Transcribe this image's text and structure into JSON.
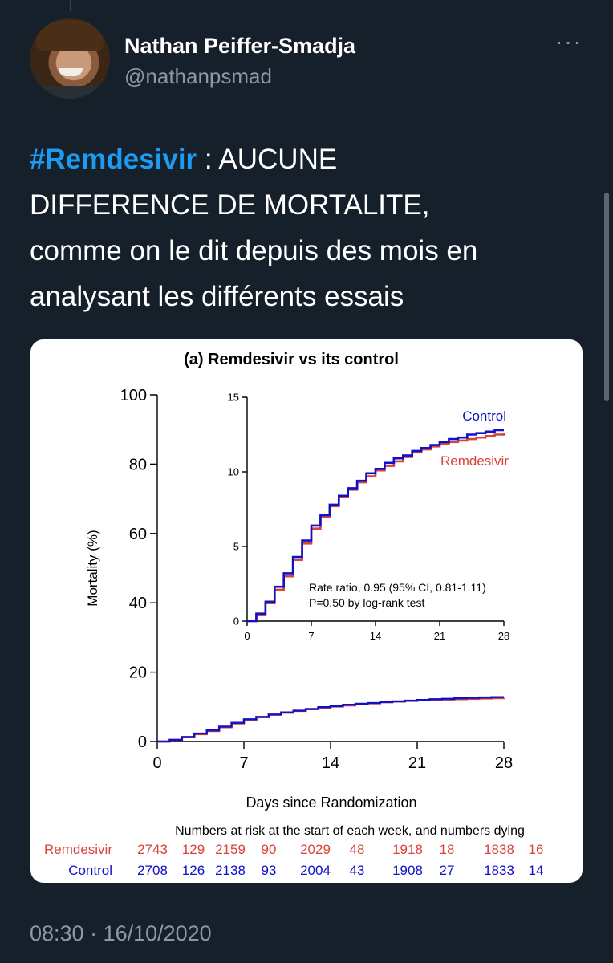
{
  "tweet": {
    "author_name": "Nathan Peiffer-Smadja",
    "author_handle": "@nathanpsmad",
    "hashtag": "#Remdesivir",
    "text_line1_rest": " : AUCUNE",
    "text_line2": "DIFFERENCE DE MORTALITE,",
    "text_line3": "comme on le dit depuis des mois en",
    "text_line4": "analysant les différents essais",
    "timestamp": "08:30 · 16/10/2020",
    "more_icon": "more-horizontal-icon",
    "hashtag_color": "#1d9bf0"
  },
  "chart_data": [
    {
      "type": "line",
      "title": "(a) Remdesivir vs its control",
      "xlabel": "Days since Randomization",
      "ylabel": "Mortality (%)",
      "xlim": [
        0,
        28
      ],
      "ylim": [
        0,
        100
      ],
      "x_ticks": [
        "0",
        "7",
        "14",
        "21",
        "28"
      ],
      "y_ticks": [
        "0",
        "20",
        "40",
        "60",
        "80",
        "100"
      ],
      "x": [
        0,
        1,
        2,
        3,
        4,
        5,
        6,
        7,
        8,
        9,
        10,
        11,
        12,
        13,
        14,
        15,
        16,
        17,
        18,
        19,
        20,
        21,
        22,
        23,
        24,
        25,
        26,
        27,
        28
      ],
      "series": [
        {
          "name": "Control",
          "color": "#1010c8",
          "values": [
            0,
            0.5,
            1.3,
            2.3,
            3.2,
            4.3,
            5.4,
            6.4,
            7.1,
            7.8,
            8.4,
            8.9,
            9.4,
            9.9,
            10.2,
            10.6,
            10.9,
            11.1,
            11.4,
            11.6,
            11.8,
            12.0,
            12.2,
            12.3,
            12.5,
            12.6,
            12.7,
            12.8,
            12.8
          ]
        },
        {
          "name": "Remdesivir",
          "color": "#d9443a",
          "values": [
            0,
            0.4,
            1.2,
            2.1,
            3.0,
            4.1,
            5.2,
            6.2,
            7.0,
            7.7,
            8.3,
            8.8,
            9.3,
            9.7,
            10.1,
            10.4,
            10.7,
            11.0,
            11.3,
            11.5,
            11.7,
            11.9,
            12.0,
            12.1,
            12.2,
            12.3,
            12.4,
            12.5,
            12.6
          ]
        }
      ]
    },
    {
      "type": "line",
      "title": "",
      "xlim": [
        0,
        28
      ],
      "ylim": [
        0,
        15
      ],
      "x_ticks": [
        "0",
        "7",
        "14",
        "21",
        "28"
      ],
      "y_ticks": [
        "0",
        "5",
        "10",
        "15"
      ],
      "annotation_line1": "Rate ratio, 0.95 (95% CI, 0.81-1.11)",
      "annotation_line2": "P=0.50 by log-rank test",
      "x": [
        0,
        1,
        2,
        3,
        4,
        5,
        6,
        7,
        8,
        9,
        10,
        11,
        12,
        13,
        14,
        15,
        16,
        17,
        18,
        19,
        20,
        21,
        22,
        23,
        24,
        25,
        26,
        27,
        28
      ],
      "series": [
        {
          "name": "Control",
          "color": "#1010c8",
          "values": [
            0,
            0.5,
            1.3,
            2.3,
            3.2,
            4.3,
            5.4,
            6.4,
            7.1,
            7.8,
            8.4,
            8.9,
            9.4,
            9.9,
            10.2,
            10.6,
            10.9,
            11.1,
            11.4,
            11.6,
            11.8,
            12.0,
            12.2,
            12.3,
            12.5,
            12.6,
            12.7,
            12.8,
            12.8
          ]
        },
        {
          "name": "Remdesivir",
          "color": "#d9443a",
          "values": [
            0,
            0.4,
            1.2,
            2.1,
            3.0,
            4.1,
            5.2,
            6.2,
            7.0,
            7.7,
            8.3,
            8.8,
            9.3,
            9.7,
            10.1,
            10.4,
            10.7,
            11.0,
            11.3,
            11.5,
            11.7,
            11.9,
            12.0,
            12.1,
            12.2,
            12.3,
            12.4,
            12.5,
            12.6
          ]
        }
      ]
    },
    {
      "type": "table",
      "title": "Numbers at risk at the start of each week, and numbers dying",
      "rows": [
        {
          "label": "Remdesivir",
          "color": "#d9443a",
          "values": [
            "2743",
            "129",
            "2159",
            "90",
            "2029",
            "48",
            "1918",
            "18",
            "1838",
            "16"
          ]
        },
        {
          "label": "Control",
          "color": "#1010c8",
          "values": [
            "2708",
            "126",
            "2138",
            "93",
            "2004",
            "43",
            "1908",
            "27",
            "1833",
            "14"
          ]
        }
      ]
    }
  ]
}
